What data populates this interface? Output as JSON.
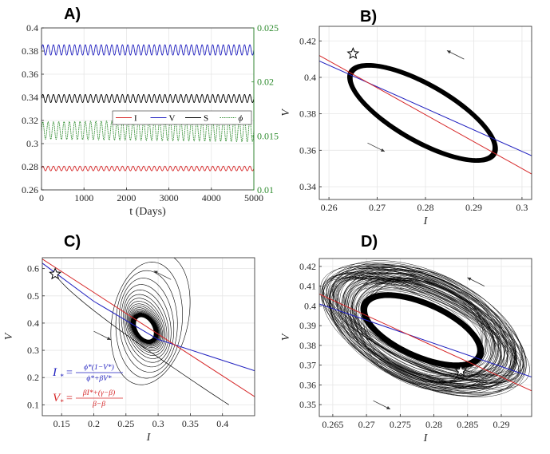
{
  "chart_data": [
    {
      "id": "A",
      "type": "line",
      "panel_label": "A)",
      "xlabel": "t (Days)",
      "ylabel": "",
      "xlim": [
        0,
        5000
      ],
      "ylim": [
        0.26,
        0.4
      ],
      "y2lim": [
        0.01,
        0.025
      ],
      "xticks": [
        "0",
        "1000",
        "2000",
        "3000",
        "4000",
        "5000"
      ],
      "yticks": [
        "0.26",
        "0.28",
        "0.3",
        "0.32",
        "0.34",
        "0.36",
        "0.38",
        "0.4"
      ],
      "y2ticks": [
        "0.01",
        "0.015",
        "0.02",
        "0.025"
      ],
      "grid": true,
      "legend": {
        "position": "center",
        "entries": [
          {
            "name": "I",
            "color": "#d62728",
            "style": "solid"
          },
          {
            "name": "V",
            "color": "#1f1fbf",
            "style": "solid"
          },
          {
            "name": "S",
            "color": "#000000",
            "style": "solid"
          },
          {
            "name": "ϕ",
            "color": "#2e8b2e",
            "style": "dotted"
          }
        ]
      },
      "series": [
        {
          "name": "V",
          "axis": "left",
          "color": "#1f1fbf",
          "mean": 0.381,
          "amplitude": 0.0045,
          "cycles": 40,
          "amp_growth": 0.0
        },
        {
          "name": "S",
          "axis": "left",
          "color": "#000000",
          "mean": 0.339,
          "amplitude": 0.0035,
          "cycles": 40,
          "amp_growth": 0.0
        },
        {
          "name": "ϕ",
          "axis": "right",
          "color": "#2e8b2e",
          "mean": 0.0155,
          "amplitude": 0.0008,
          "cycles": 40,
          "amp_growth": 0.3
        },
        {
          "name": "I",
          "axis": "left",
          "color": "#d62728",
          "mean": 0.2785,
          "amplitude": 0.002,
          "cycles": 40,
          "amp_growth": 0.0
        }
      ]
    },
    {
      "id": "B",
      "type": "line",
      "panel_label": "B)",
      "xlabel": "I",
      "ylabel": "V",
      "xlim": [
        0.258,
        0.302
      ],
      "ylim": [
        0.333,
        0.428
      ],
      "xticks": [
        "0.26",
        "0.27",
        "0.28",
        "0.29",
        "0.3"
      ],
      "yticks": [
        "0.34",
        "0.36",
        "0.38",
        "0.4",
        "0.42"
      ],
      "grid": true,
      "limit_cycle": {
        "center": [
          0.2794,
          0.3805
        ],
        "start_point": [
          0.265,
          0.413
        ],
        "turning": [
          0.2945,
          0.357
        ],
        "top": [
          0.2735,
          0.4213
        ],
        "bottom": [
          0.2855,
          0.3405
        ]
      },
      "nullclines": [
        {
          "name": "I-nullcline",
          "color": "#1f1fbf",
          "points": [
            [
              0.258,
              0.409
            ],
            [
              0.302,
              0.357
            ]
          ]
        },
        {
          "name": "V-nullcline",
          "color": "#d62728",
          "points": [
            [
              0.258,
              0.412
            ],
            [
              0.302,
              0.347
            ]
          ]
        }
      ],
      "marker": {
        "symbol": "star",
        "point": [
          0.265,
          0.413
        ]
      },
      "arrows": [
        {
          "direction": "up-left",
          "at": [
            0.288,
            0.41
          ]
        },
        {
          "direction": "down-right",
          "at": [
            0.268,
            0.364
          ]
        }
      ]
    },
    {
      "id": "C",
      "type": "line",
      "panel_label": "C)",
      "xlabel": "I",
      "ylabel": "V",
      "xlim": [
        0.12,
        0.45
      ],
      "ylim": [
        0.06,
        0.64
      ],
      "xticks": [
        "0.15",
        "0.2",
        "0.25",
        "0.3",
        "0.35",
        "0.4"
      ],
      "yticks": [
        "0.1",
        "0.2",
        "0.3",
        "0.4",
        "0.5",
        "0.6"
      ],
      "grid": true,
      "spiral": {
        "start": [
          0.14,
          0.58
        ],
        "center": [
          0.2794,
          0.3805
        ],
        "outer_extent_I": [
          0.14,
          0.425
        ],
        "outer_extent_V": [
          0.1,
          0.58
        ]
      },
      "nullclines": [
        {
          "name": "I-nullcline",
          "color": "#1f1fbf",
          "points": [
            [
              0.12,
              0.62
            ],
            [
              0.2,
              0.48
            ],
            [
              0.3,
              0.34
            ],
            [
              0.45,
              0.225
            ]
          ]
        },
        {
          "name": "V-nullcline",
          "color": "#d62728",
          "points": [
            [
              0.12,
              0.635
            ],
            [
              0.45,
              0.13
            ]
          ]
        }
      ],
      "marker": {
        "symbol": "star",
        "point": [
          0.14,
          0.58
        ]
      },
      "arrows": [
        {
          "direction": "up-left",
          "at": [
            0.32,
            0.56
          ]
        },
        {
          "direction": "down-right",
          "at": [
            0.2,
            0.37
          ]
        }
      ],
      "annotations": [
        {
          "color": "#1f1fbf",
          "lhs": "I",
          "lhs_sub": "*",
          "num": "ϕ*(1−V*)",
          "den": "ϕ*+βV*"
        },
        {
          "color": "#d62728",
          "lhs": "V",
          "lhs_sub": "*",
          "num": "βI*+(γ−β)",
          "den": "β−β"
        }
      ]
    },
    {
      "id": "D",
      "type": "line",
      "panel_label": "D)",
      "xlabel": "I",
      "ylabel": "V",
      "xlim": [
        0.263,
        0.2945
      ],
      "ylim": [
        0.344,
        0.424
      ],
      "xticks": [
        "0.265",
        "0.27",
        "0.275",
        "0.28",
        "0.285",
        "0.29"
      ],
      "yticks": [
        "0.35",
        "0.36",
        "0.37",
        "0.38",
        "0.39",
        "0.4",
        "0.41",
        "0.42"
      ],
      "grid": true,
      "chaotic_band": {
        "center": [
          0.2785,
          0.3885
        ],
        "start_point": [
          0.284,
          0.367
        ]
      },
      "nullclines": [
        {
          "name": "I-nullcline",
          "color": "#1f1fbf",
          "points": [
            [
              0.263,
              0.401
            ],
            [
              0.2945,
              0.364
            ]
          ]
        },
        {
          "name": "V-nullcline",
          "color": "#d62728",
          "points": [
            [
              0.263,
              0.406
            ],
            [
              0.2945,
              0.357
            ]
          ]
        }
      ],
      "marker": {
        "symbol": "star",
        "point": [
          0.284,
          0.367
        ]
      },
      "arrows": [
        {
          "direction": "up-left",
          "at": [
            0.2875,
            0.41
          ]
        },
        {
          "direction": "down-right",
          "at": [
            0.271,
            0.352
          ]
        }
      ]
    }
  ]
}
